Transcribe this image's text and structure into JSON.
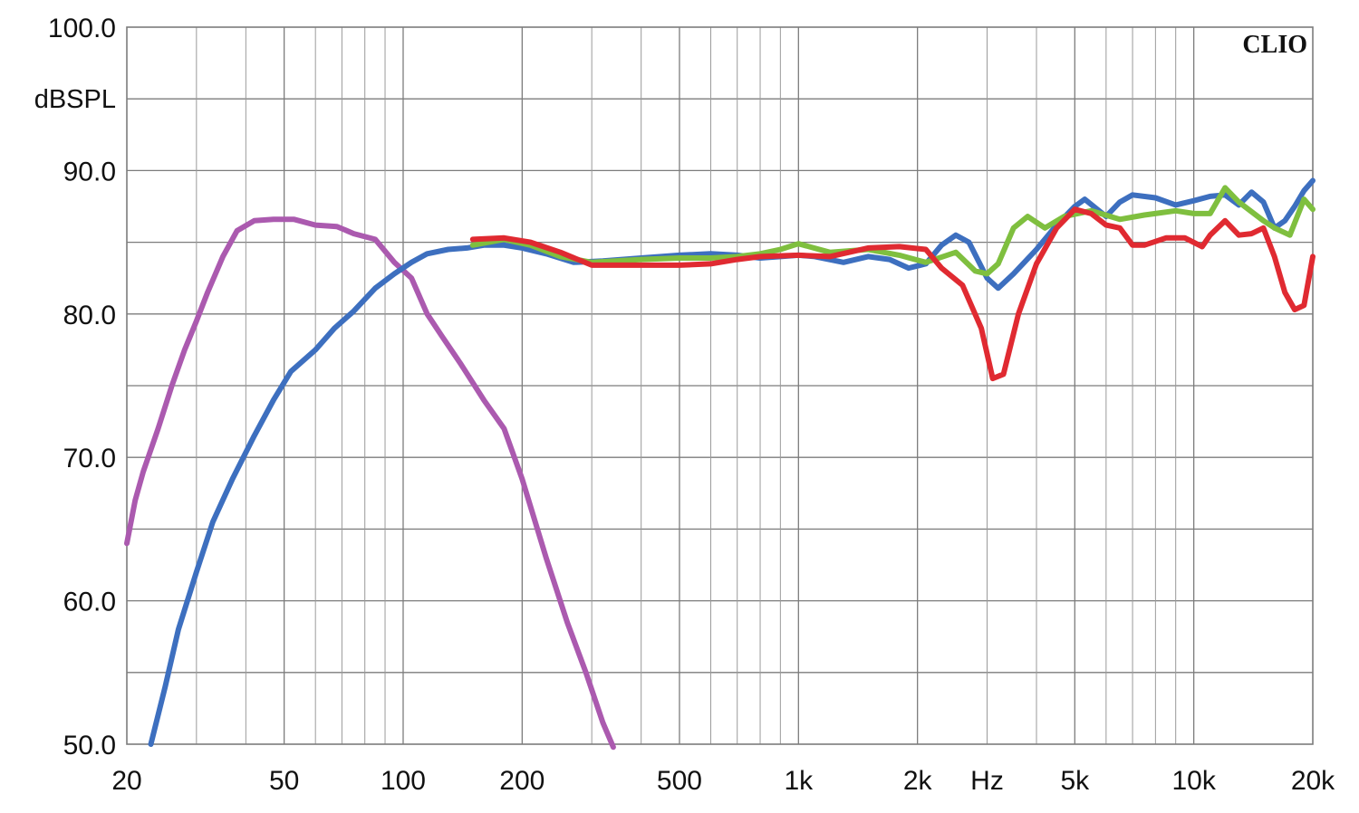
{
  "chart_data": {
    "type": "line",
    "title": "",
    "brand": "CLIO",
    "ylabel": "dBSPL",
    "xlabel": "Hz",
    "xscale": "log",
    "xlim": [
      20,
      20000
    ],
    "ylim": [
      50,
      100
    ],
    "grid": true,
    "y_ticks": [
      {
        "value": 100,
        "label": "100.0"
      },
      {
        "value": 90,
        "label": "90.0"
      },
      {
        "value": 80,
        "label": "80.0"
      },
      {
        "value": 70,
        "label": "70.0"
      },
      {
        "value": 60,
        "label": "60.0"
      },
      {
        "value": 50,
        "label": "50.0"
      }
    ],
    "x_ticks": [
      {
        "value": 20,
        "label": "20"
      },
      {
        "value": 50,
        "label": "50"
      },
      {
        "value": 100,
        "label": "100"
      },
      {
        "value": 200,
        "label": "200"
      },
      {
        "value": 500,
        "label": "500"
      },
      {
        "value": 1000,
        "label": "1k"
      },
      {
        "value": 2000,
        "label": "2k"
      },
      {
        "value": 5000,
        "label": "5k"
      },
      {
        "value": 10000,
        "label": "10k"
      },
      {
        "value": 20000,
        "label": "20k"
      }
    ],
    "series": [
      {
        "color": "#ab5aaf",
        "points": [
          [
            20,
            64
          ],
          [
            21,
            67
          ],
          [
            22,
            69
          ],
          [
            24,
            72
          ],
          [
            26,
            75
          ],
          [
            28,
            77.5
          ],
          [
            30,
            79.5
          ],
          [
            32,
            81.5
          ],
          [
            35,
            84
          ],
          [
            38,
            85.8
          ],
          [
            42,
            86.5
          ],
          [
            47,
            86.6
          ],
          [
            53,
            86.6
          ],
          [
            60,
            86.2
          ],
          [
            68,
            86.1
          ],
          [
            75,
            85.6
          ],
          [
            85,
            85.2
          ],
          [
            95,
            83.6
          ],
          [
            105,
            82.5
          ],
          [
            115,
            80
          ],
          [
            125,
            78.5
          ],
          [
            140,
            76.5
          ],
          [
            160,
            74
          ],
          [
            180,
            72
          ],
          [
            200,
            68.5
          ],
          [
            230,
            63
          ],
          [
            260,
            58.5
          ],
          [
            290,
            55
          ],
          [
            320,
            51.5
          ],
          [
            340,
            49.8
          ]
        ]
      },
      {
        "color": "#3d6fbf",
        "points": [
          [
            23,
            50
          ],
          [
            25,
            54
          ],
          [
            27,
            58
          ],
          [
            30,
            62
          ],
          [
            33,
            65.5
          ],
          [
            37,
            68.5
          ],
          [
            42,
            71.5
          ],
          [
            47,
            74
          ],
          [
            52,
            76
          ],
          [
            60,
            77.5
          ],
          [
            67,
            79
          ],
          [
            75,
            80.2
          ],
          [
            85,
            81.8
          ],
          [
            95,
            82.8
          ],
          [
            105,
            83.6
          ],
          [
            115,
            84.2
          ],
          [
            130,
            84.5
          ],
          [
            145,
            84.6
          ],
          [
            160,
            84.8
          ],
          [
            180,
            84.8
          ],
          [
            200,
            84.6
          ],
          [
            230,
            84.2
          ],
          [
            270,
            83.6
          ],
          [
            320,
            83.7
          ],
          [
            400,
            83.9
          ],
          [
            500,
            84.1
          ],
          [
            600,
            84.2
          ],
          [
            700,
            84.1
          ],
          [
            800,
            83.9
          ],
          [
            900,
            84
          ],
          [
            1000,
            84.1
          ],
          [
            1100,
            84
          ],
          [
            1300,
            83.6
          ],
          [
            1500,
            84
          ],
          [
            1700,
            83.8
          ],
          [
            1900,
            83.2
          ],
          [
            2100,
            83.5
          ],
          [
            2300,
            84.8
          ],
          [
            2500,
            85.5
          ],
          [
            2700,
            85
          ],
          [
            3000,
            82.5
          ],
          [
            3200,
            81.8
          ],
          [
            3500,
            82.8
          ],
          [
            4000,
            84.5
          ],
          [
            4500,
            86.2
          ],
          [
            5000,
            87.5
          ],
          [
            5300,
            88
          ],
          [
            5700,
            87.3
          ],
          [
            6000,
            86.8
          ],
          [
            6500,
            87.8
          ],
          [
            7000,
            88.3
          ],
          [
            8000,
            88.1
          ],
          [
            9000,
            87.6
          ],
          [
            10000,
            87.9
          ],
          [
            11000,
            88.2
          ],
          [
            12000,
            88.3
          ],
          [
            13000,
            87.6
          ],
          [
            14000,
            88.5
          ],
          [
            15000,
            87.8
          ],
          [
            16000,
            86
          ],
          [
            17000,
            86.5
          ],
          [
            18000,
            87.5
          ],
          [
            19000,
            88.6
          ],
          [
            20000,
            89.3
          ]
        ]
      },
      {
        "color": "#7fbf3f",
        "points": [
          [
            150,
            84.8
          ],
          [
            180,
            85.2
          ],
          [
            210,
            84.8
          ],
          [
            250,
            84
          ],
          [
            300,
            83.6
          ],
          [
            400,
            83.8
          ],
          [
            500,
            83.9
          ],
          [
            600,
            83.9
          ],
          [
            700,
            84
          ],
          [
            800,
            84.2
          ],
          [
            900,
            84.5
          ],
          [
            1000,
            84.9
          ],
          [
            1200,
            84.3
          ],
          [
            1500,
            84.5
          ],
          [
            1800,
            84.1
          ],
          [
            2100,
            83.6
          ],
          [
            2500,
            84.3
          ],
          [
            2800,
            83
          ],
          [
            3000,
            82.8
          ],
          [
            3200,
            83.5
          ],
          [
            3500,
            86
          ],
          [
            3800,
            86.8
          ],
          [
            4200,
            86
          ],
          [
            4700,
            86.8
          ],
          [
            5500,
            87.2
          ],
          [
            6500,
            86.6
          ],
          [
            7500,
            86.9
          ],
          [
            9000,
            87.2
          ],
          [
            10000,
            87
          ],
          [
            11000,
            87
          ],
          [
            12000,
            88.8
          ],
          [
            13000,
            87.8
          ],
          [
            15000,
            86.5
          ],
          [
            16000,
            86
          ],
          [
            17500,
            85.5
          ],
          [
            19000,
            88
          ],
          [
            20000,
            87.3
          ]
        ]
      },
      {
        "color": "#e02a31",
        "points": [
          [
            150,
            85.2
          ],
          [
            180,
            85.3
          ],
          [
            210,
            85
          ],
          [
            250,
            84.3
          ],
          [
            300,
            83.4
          ],
          [
            400,
            83.4
          ],
          [
            500,
            83.4
          ],
          [
            600,
            83.5
          ],
          [
            700,
            83.8
          ],
          [
            800,
            84
          ],
          [
            1000,
            84.1
          ],
          [
            1200,
            84
          ],
          [
            1500,
            84.6
          ],
          [
            1800,
            84.7
          ],
          [
            2100,
            84.5
          ],
          [
            2300,
            83.2
          ],
          [
            2600,
            82
          ],
          [
            2900,
            79
          ],
          [
            3100,
            75.5
          ],
          [
            3300,
            75.8
          ],
          [
            3600,
            80
          ],
          [
            4000,
            83.5
          ],
          [
            4500,
            86
          ],
          [
            5000,
            87.3
          ],
          [
            5500,
            87
          ],
          [
            6000,
            86.2
          ],
          [
            6500,
            86
          ],
          [
            7000,
            84.8
          ],
          [
            7500,
            84.8
          ],
          [
            8500,
            85.3
          ],
          [
            9500,
            85.3
          ],
          [
            10500,
            84.7
          ],
          [
            11000,
            85.5
          ],
          [
            12000,
            86.5
          ],
          [
            13000,
            85.5
          ],
          [
            14000,
            85.6
          ],
          [
            15000,
            86
          ],
          [
            16000,
            84
          ],
          [
            17000,
            81.5
          ],
          [
            18000,
            80.3
          ],
          [
            19000,
            80.6
          ],
          [
            20000,
            84
          ]
        ]
      }
    ]
  }
}
